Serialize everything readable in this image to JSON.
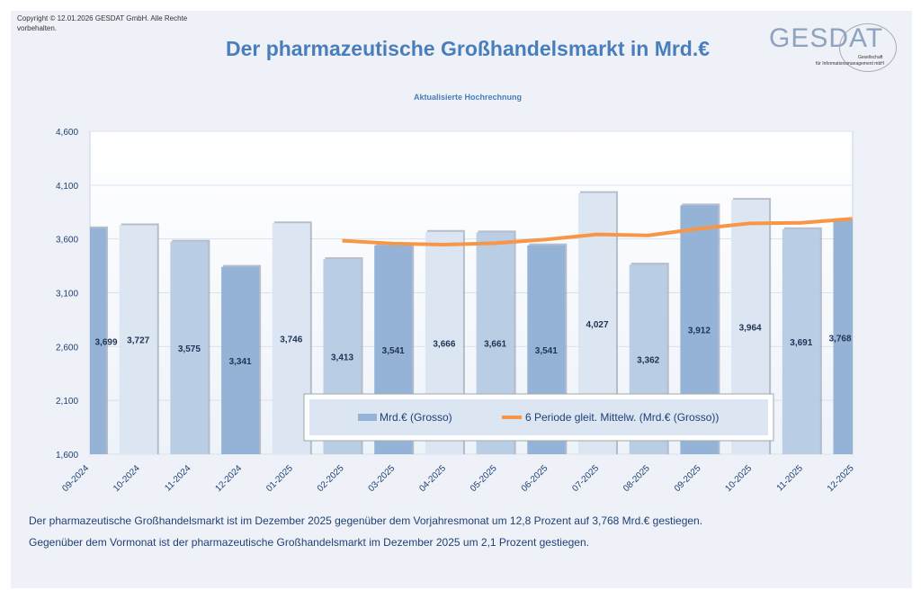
{
  "copyright": "Copyright © 12.01.2026 GESDAT GmbH. Alle Rechte vorbehalten.",
  "logo": {
    "name": "GESDAT",
    "line1": "Gesellschaft",
    "line2": "für Informationsmanagement mbH"
  },
  "notes": [
    "Der pharmazeutische Großhandelsmarkt ist im Dezember 2025 gegenüber dem Vorjahresmonat um 12,8 Prozent auf 3,768 Mrd.€ gestiegen.",
    "Gegenüber dem Vormonat ist der pharmazeutische Großhandelsmarkt im Dezember 2025 um 2,1 Prozent gestiegen."
  ],
  "chart_data": {
    "type": "bar",
    "title": "Der pharmazeutische Großhandelsmarkt in Mrd.€",
    "subtitle": "Aktualisierte Hochrechnung",
    "categories": [
      "09-2024",
      "10-2024",
      "11-2024",
      "12-2024",
      "01-2025",
      "02-2025",
      "03-2025",
      "04-2025",
      "05-2025",
      "06-2025",
      "07-2025",
      "08-2025",
      "09-2025",
      "10-2025",
      "11-2025",
      "12-2025"
    ],
    "series": [
      {
        "name": "Mrd.€ (Grosso)",
        "type": "bar",
        "values": [
          3.699,
          3.727,
          3.575,
          3.341,
          3.746,
          3.413,
          3.541,
          3.666,
          3.661,
          3.541,
          4.027,
          3.362,
          3.912,
          3.964,
          3.691,
          3.768
        ],
        "labels": [
          "3,699",
          "3,727",
          "3,575",
          "3,341",
          "3,746",
          "3,413",
          "3,541",
          "3,666",
          "3,661",
          "3,541",
          "4,027",
          "3,362",
          "3,912",
          "3,964",
          "3,691",
          "3,768"
        ]
      },
      {
        "name": "6 Periode gleit. Mittelw. (Mrd.€ (Grosso))",
        "type": "line",
        "values": [
          null,
          null,
          null,
          null,
          null,
          3.584,
          3.557,
          3.547,
          3.561,
          3.595,
          3.642,
          3.633,
          3.695,
          3.745,
          3.75,
          3.787
        ]
      }
    ],
    "yticks": [
      "1,600",
      "2,100",
      "2,600",
      "3,100",
      "3,600",
      "4,100",
      "4,600"
    ],
    "ylim": [
      1.6,
      4.6
    ],
    "grid": true,
    "legend": "bottom-center",
    "colors": {
      "bars": [
        "#94b3d7",
        "#dce6f2",
        "#b9cde5"
      ],
      "line": "#f79646",
      "text": "#4a7ebb"
    }
  }
}
